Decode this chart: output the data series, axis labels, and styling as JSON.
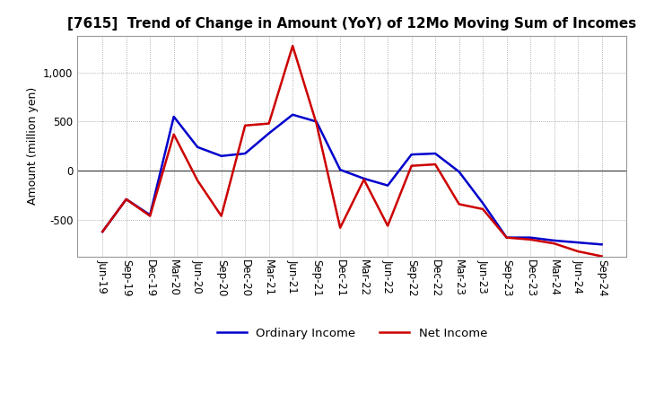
{
  "title": "[7615]  Trend of Change in Amount (YoY) of 12Mo Moving Sum of Incomes",
  "ylabel": "Amount (million yen)",
  "labels": [
    "Jun-19",
    "Sep-19",
    "Dec-19",
    "Mar-20",
    "Jun-20",
    "Sep-20",
    "Dec-20",
    "Mar-21",
    "Jun-21",
    "Sep-21",
    "Dec-21",
    "Mar-22",
    "Jun-22",
    "Sep-22",
    "Dec-22",
    "Mar-23",
    "Jun-23",
    "Sep-23",
    "Dec-23",
    "Mar-24",
    "Jun-24",
    "Sep-24"
  ],
  "ordinary_income": [
    -620,
    -290,
    -450,
    550,
    240,
    150,
    175,
    380,
    570,
    500,
    10,
    -80,
    -150,
    165,
    175,
    -10,
    -330,
    -680,
    -680,
    -710,
    -730,
    -750
  ],
  "net_income": [
    -620,
    -290,
    -460,
    370,
    -100,
    -460,
    460,
    480,
    1270,
    480,
    -580,
    -90,
    -560,
    50,
    65,
    -340,
    -390,
    -680,
    -700,
    -740,
    -820,
    -870
  ],
  "ordinary_color": "#0000cc",
  "net_color": "#cc0000",
  "ylim": [
    -875,
    1375
  ],
  "yticks": [
    -500,
    0,
    500,
    1000
  ],
  "background_color": "#ffffff",
  "grid_color": "#aaaaaa",
  "line_width": 1.8,
  "title_fontsize": 11,
  "axis_fontsize": 9,
  "tick_fontsize": 8.5
}
